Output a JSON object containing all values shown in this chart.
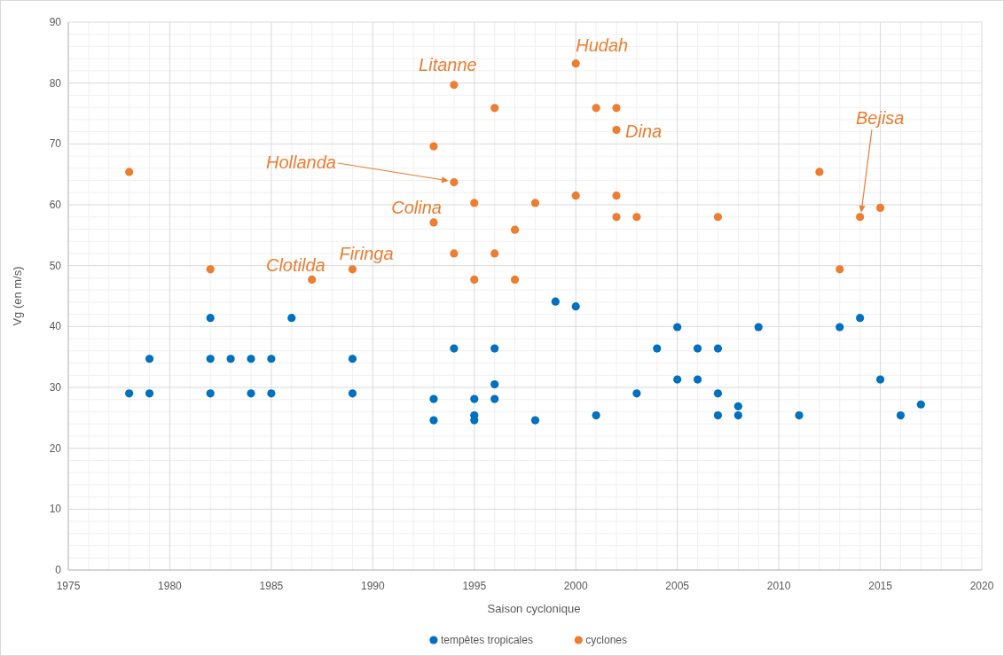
{
  "chart_data": {
    "type": "scatter",
    "xlabel": "Saison cyclonique",
    "ylabel": "Vg (en m/s)",
    "xlim": [
      1975,
      2020
    ],
    "xticks": [
      1975,
      1980,
      1985,
      1990,
      1995,
      2000,
      2005,
      2010,
      2015,
      2020
    ],
    "ylim": [
      0,
      90
    ],
    "yticks": [
      0,
      10,
      20,
      30,
      40,
      50,
      60,
      70,
      80,
      90
    ],
    "grid": true,
    "legend": "bottom",
    "marker": "circle",
    "series": [
      {
        "name": "tempêtes tropicales",
        "color": "#0070c0",
        "x": [
          1978,
          1979,
          1979,
          1982,
          1982,
          1982,
          1983,
          1984,
          1984,
          1985,
          1985,
          1986,
          1989,
          1989,
          1993,
          1993,
          1994,
          1995,
          1995,
          1995,
          1996,
          1996,
          1996,
          1998,
          1999,
          2000,
          2001,
          2003,
          2004,
          2005,
          2005,
          2006,
          2006,
          2007,
          2007,
          2007,
          2008,
          2008,
          2009,
          2011,
          2013,
          2014,
          2015,
          2016,
          2017
        ],
        "values": [
          29,
          34.7,
          29,
          41.4,
          34.7,
          29,
          34.7,
          34.7,
          29,
          34.7,
          29,
          41.4,
          34.7,
          29,
          28.1,
          24.6,
          36.4,
          28.1,
          25.4,
          24.6,
          36.4,
          30.5,
          28.1,
          24.6,
          44.1,
          43.3,
          25.4,
          29,
          36.4,
          39.9,
          31.3,
          36.4,
          31.3,
          36.4,
          29,
          25.4,
          26.9,
          25.4,
          39.9,
          25.4,
          39.9,
          41.4,
          31.3,
          25.4,
          27.2
        ]
      },
      {
        "name": "cyclones",
        "color": "#ed7d31",
        "x": [
          1978,
          1982,
          1987,
          1989,
          1993,
          1993,
          1994,
          1994,
          1994,
          1995,
          1995,
          1996,
          1996,
          1997,
          1997,
          1998,
          2000,
          2000,
          2001,
          2002,
          2002,
          2002,
          2002,
          2003,
          2007,
          2012,
          2013,
          2014,
          2015
        ],
        "values": [
          65.4,
          49.4,
          47.7,
          49.4,
          69.6,
          57.1,
          79.7,
          63.7,
          52,
          60.3,
          47.7,
          75.9,
          52,
          55.9,
          47.7,
          60.3,
          83.2,
          61.5,
          75.9,
          75.9,
          72.3,
          61.5,
          58,
          58,
          58,
          65.4,
          49.4,
          58,
          59.5
        ]
      }
    ],
    "annotations": [
      {
        "text": "Litanne",
        "x": 1994,
        "y": 79.7
      },
      {
        "text": "Hudah",
        "x": 2000,
        "y": 83.2
      },
      {
        "text": "Dina",
        "x": 2002,
        "y": 72.3
      },
      "Hollanda",
      {
        "text": "Colina",
        "x": 1993,
        "y": 57.1
      },
      {
        "text": "Clotilda",
        "x": 1987,
        "y": 47.7
      },
      {
        "text": "Firinga",
        "x": 1989,
        "y": 49.4
      },
      "Bejisa"
    ]
  }
}
